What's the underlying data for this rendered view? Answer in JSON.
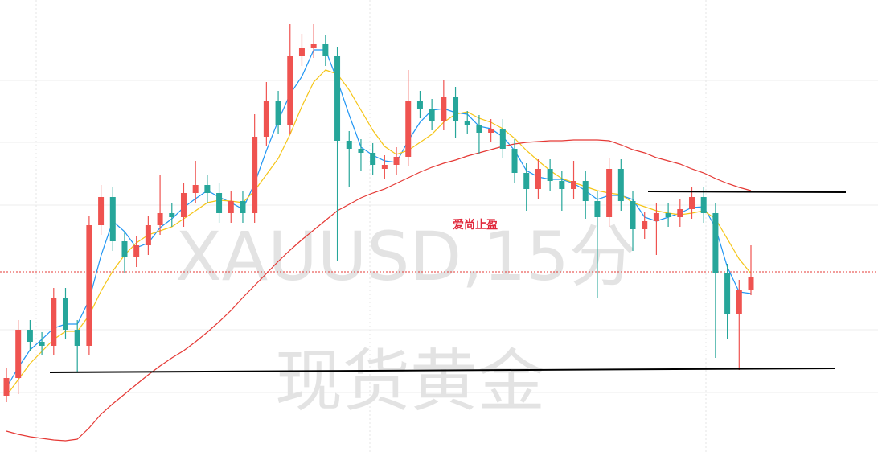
{
  "chart_data": {
    "type": "candlestick",
    "watermark": [
      "XAUUSD,15分",
      "现货黄金"
    ],
    "annotation": "爱尚止盈",
    "up_color": "#ef5350",
    "down_color": "#26a69a",
    "ylim": [
      0,
      562
    ],
    "open": [
      70,
      92,
      152,
      137,
      132,
      192,
      152,
      132,
      282,
      317,
      262,
      242,
      257,
      282,
      297,
      292,
      322,
      332,
      322,
      297,
      312,
      297,
      392,
      437,
      407,
      492,
      502,
      507,
      492,
      387,
      377,
      372,
      352,
      357,
      367,
      437,
      427,
      412,
      442,
      412,
      407,
      397,
      402,
      377,
      347,
      327,
      352,
      337,
      327,
      337,
      312,
      292,
      352,
      312,
      277,
      287,
      297,
      292,
      302,
      317,
      297,
      222,
      172,
      202
    ],
    "high": [
      104,
      164,
      164,
      149,
      204,
      204,
      164,
      294,
      332,
      329,
      274,
      269,
      294,
      345,
      309,
      334,
      362,
      344,
      334,
      324,
      324,
      420,
      460,
      449,
      532,
      520,
      532,
      519,
      504,
      399,
      389,
      384,
      369,
      379,
      475,
      449,
      439,
      462,
      454,
      424,
      419,
      414,
      414,
      389,
      359,
      364,
      364,
      349,
      362,
      349,
      324,
      365,
      364,
      324,
      299,
      309,
      309,
      314,
      329,
      329,
      309,
      234,
      214,
      257
    ],
    "low": [
      62,
      72,
      125,
      120,
      120,
      140,
      100,
      120,
      270,
      250,
      222,
      230,
      245,
      270,
      280,
      280,
      310,
      310,
      285,
      285,
      285,
      285,
      380,
      395,
      395,
      480,
      490,
      480,
      237,
      330,
      350,
      345,
      340,
      345,
      355,
      415,
      400,
      400,
      390,
      395,
      370,
      385,
      365,
      335,
      300,
      315,
      325,
      300,
      315,
      290,
      192,
      280,
      300,
      250,
      265,
      245,
      280,
      280,
      290,
      285,
      117,
      140,
      102,
      195
    ],
    "close": [
      92,
      152,
      137,
      132,
      192,
      152,
      132,
      282,
      317,
      262,
      242,
      257,
      282,
      297,
      292,
      322,
      332,
      322,
      297,
      312,
      297,
      392,
      437,
      407,
      492,
      502,
      507,
      492,
      387,
      377,
      372,
      357,
      357,
      367,
      437,
      427,
      412,
      442,
      412,
      407,
      397,
      402,
      377,
      347,
      327,
      352,
      337,
      327,
      337,
      312,
      292,
      352,
      312,
      277,
      287,
      297,
      292,
      302,
      317,
      297,
      222,
      172,
      202,
      217
    ],
    "lines": [
      {
        "color": "#2196f3",
        "values": [
          80,
          105,
          127,
          140,
          154,
          159,
          159,
          189,
          244,
          287,
          274,
          254,
          260,
          279,
          290,
          304,
          315,
          325,
          317,
          310,
          302,
          334,
          375,
          412,
          445,
          467,
          500,
          500,
          462,
          419,
          379,
          369,
          362,
          360,
          387,
          410,
          425,
          427,
          422,
          420,
          405,
          402,
          392,
          375,
          350,
          342,
          339,
          339,
          334,
          325,
          314,
          319,
          319,
          314,
          292,
          287,
          292,
          297,
          304,
          305,
          279,
          230,
          199,
          197
        ]
      },
      {
        "color": "#f5c518",
        "values": [
          70,
          90,
          110,
          125,
          140,
          150,
          150,
          170,
          200,
          225,
          245,
          260,
          270,
          275,
          280,
          290,
          300,
          310,
          313,
          312,
          310,
          325,
          345,
          365,
          395,
          430,
          460,
          475,
          470,
          450,
          425,
          400,
          380,
          370,
          375,
          385,
          395,
          410,
          420,
          423,
          415,
          410,
          402,
          390,
          375,
          362,
          350,
          340,
          335,
          330,
          325,
          322,
          320,
          310,
          305,
          300,
          297,
          295,
          297,
          300,
          290,
          265,
          240,
          222
        ]
      },
      {
        "color": "#e53935",
        "values": [
          26,
          22,
          19,
          17,
          15,
          14,
          16,
          30,
          47,
          60,
          72,
          84,
          96,
          107,
          117,
          126,
          137,
          149,
          162,
          176,
          192,
          207,
          222,
          237,
          251,
          264,
          276,
          288,
          300,
          308,
          316,
          322,
          327,
          334,
          341,
          348,
          354,
          359,
          363,
          368,
          372,
          376,
          380,
          383,
          385,
          386,
          387,
          387,
          388,
          388,
          388,
          387,
          382,
          376,
          372,
          366,
          362,
          358,
          352,
          347,
          340,
          334,
          329,
          325
        ]
      }
    ]
  }
}
